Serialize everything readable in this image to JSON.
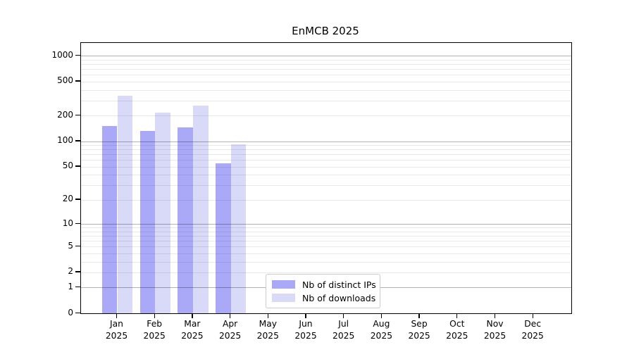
{
  "chart_data": {
    "type": "bar",
    "title": "EnMCB 2025",
    "x_months": [
      "Jan",
      "Feb",
      "Mar",
      "Apr",
      "May",
      "Jun",
      "Jul",
      "Aug",
      "Sep",
      "Oct",
      "Nov",
      "Dec"
    ],
    "x_year": "2025",
    "series": [
      {
        "name": "Nb of distinct IPs",
        "color": "#a9a9f8",
        "values": [
          150,
          133,
          146,
          55,
          null,
          null,
          null,
          null,
          null,
          null,
          null,
          null
        ]
      },
      {
        "name": "Nb of downloads",
        "color": "#d9d9f8",
        "values": [
          340,
          216,
          260,
          92,
          null,
          null,
          null,
          null,
          null,
          null,
          null,
          null
        ]
      }
    ],
    "y_scale": "log1p",
    "ylim": [
      0,
      1000
    ],
    "y_ticks": [
      0,
      1,
      2,
      5,
      10,
      20,
      50,
      100,
      200,
      500,
      1000
    ],
    "y_major_grid": [
      1,
      10,
      100,
      1000
    ],
    "y_minor_grid": [
      2,
      3,
      4,
      5,
      6,
      7,
      8,
      9,
      20,
      30,
      40,
      50,
      60,
      70,
      80,
      90,
      200,
      300,
      400,
      500,
      600,
      700,
      800,
      900
    ],
    "grid": "horizontal",
    "legend_position": "inside lower-center-left",
    "colors": {
      "axis": "#000000",
      "major_grid": "#b3b3b3",
      "minor_grid": "#e8e8e8",
      "background": "#ffffff"
    }
  }
}
